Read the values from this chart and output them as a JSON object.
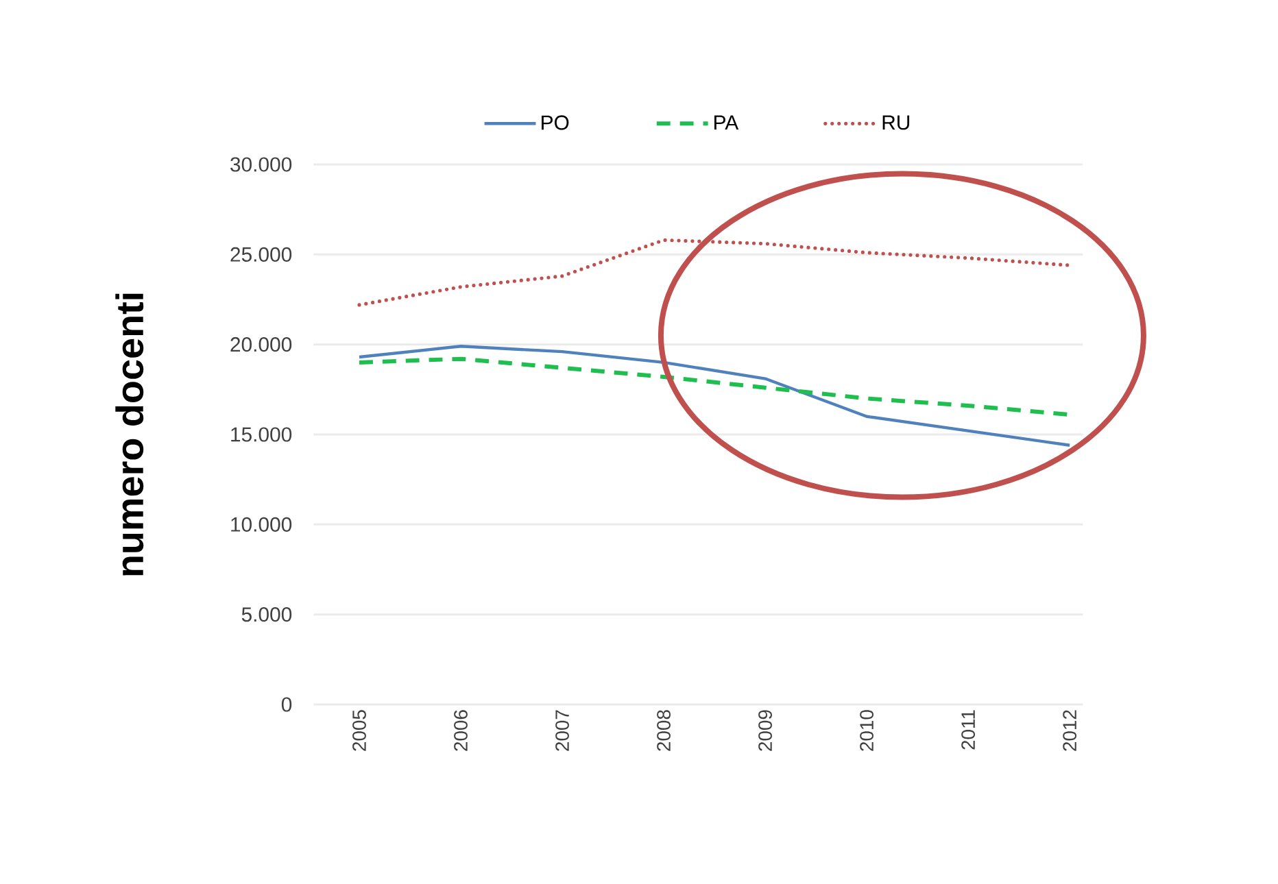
{
  "chart_data": {
    "type": "line",
    "ylabel": "numero docenti",
    "categories": [
      "2005",
      "2006",
      "2007",
      "2008",
      "2009",
      "2010",
      "2011",
      "2012"
    ],
    "series": [
      {
        "name": "PO",
        "color": "#4f81bd",
        "line_style": "solid",
        "values": [
          19300,
          19900,
          19600,
          19000,
          18100,
          16000,
          15200,
          14400
        ]
      },
      {
        "name": "PA",
        "color": "#1fbf4f",
        "line_style": "dashed",
        "values": [
          19000,
          19200,
          18700,
          18200,
          17600,
          17000,
          16600,
          16100
        ]
      },
      {
        "name": "RU",
        "color": "#c0504d",
        "line_style": "dotted",
        "values": [
          22200,
          23200,
          23800,
          25800,
          25600,
          25100,
          24800,
          24400
        ]
      }
    ],
    "ylim": [
      0,
      30000
    ],
    "yticks": [
      {
        "value": 0,
        "label": "0"
      },
      {
        "value": 5000,
        "label": "5.000"
      },
      {
        "value": 10000,
        "label": "10.000"
      },
      {
        "value": 15000,
        "label": "15.000"
      },
      {
        "value": 20000,
        "label": "20.000"
      },
      {
        "value": 25000,
        "label": "25.000"
      },
      {
        "value": 30000,
        "label": "30.000"
      }
    ],
    "grid": "y",
    "legend": "top",
    "marker": "none"
  }
}
